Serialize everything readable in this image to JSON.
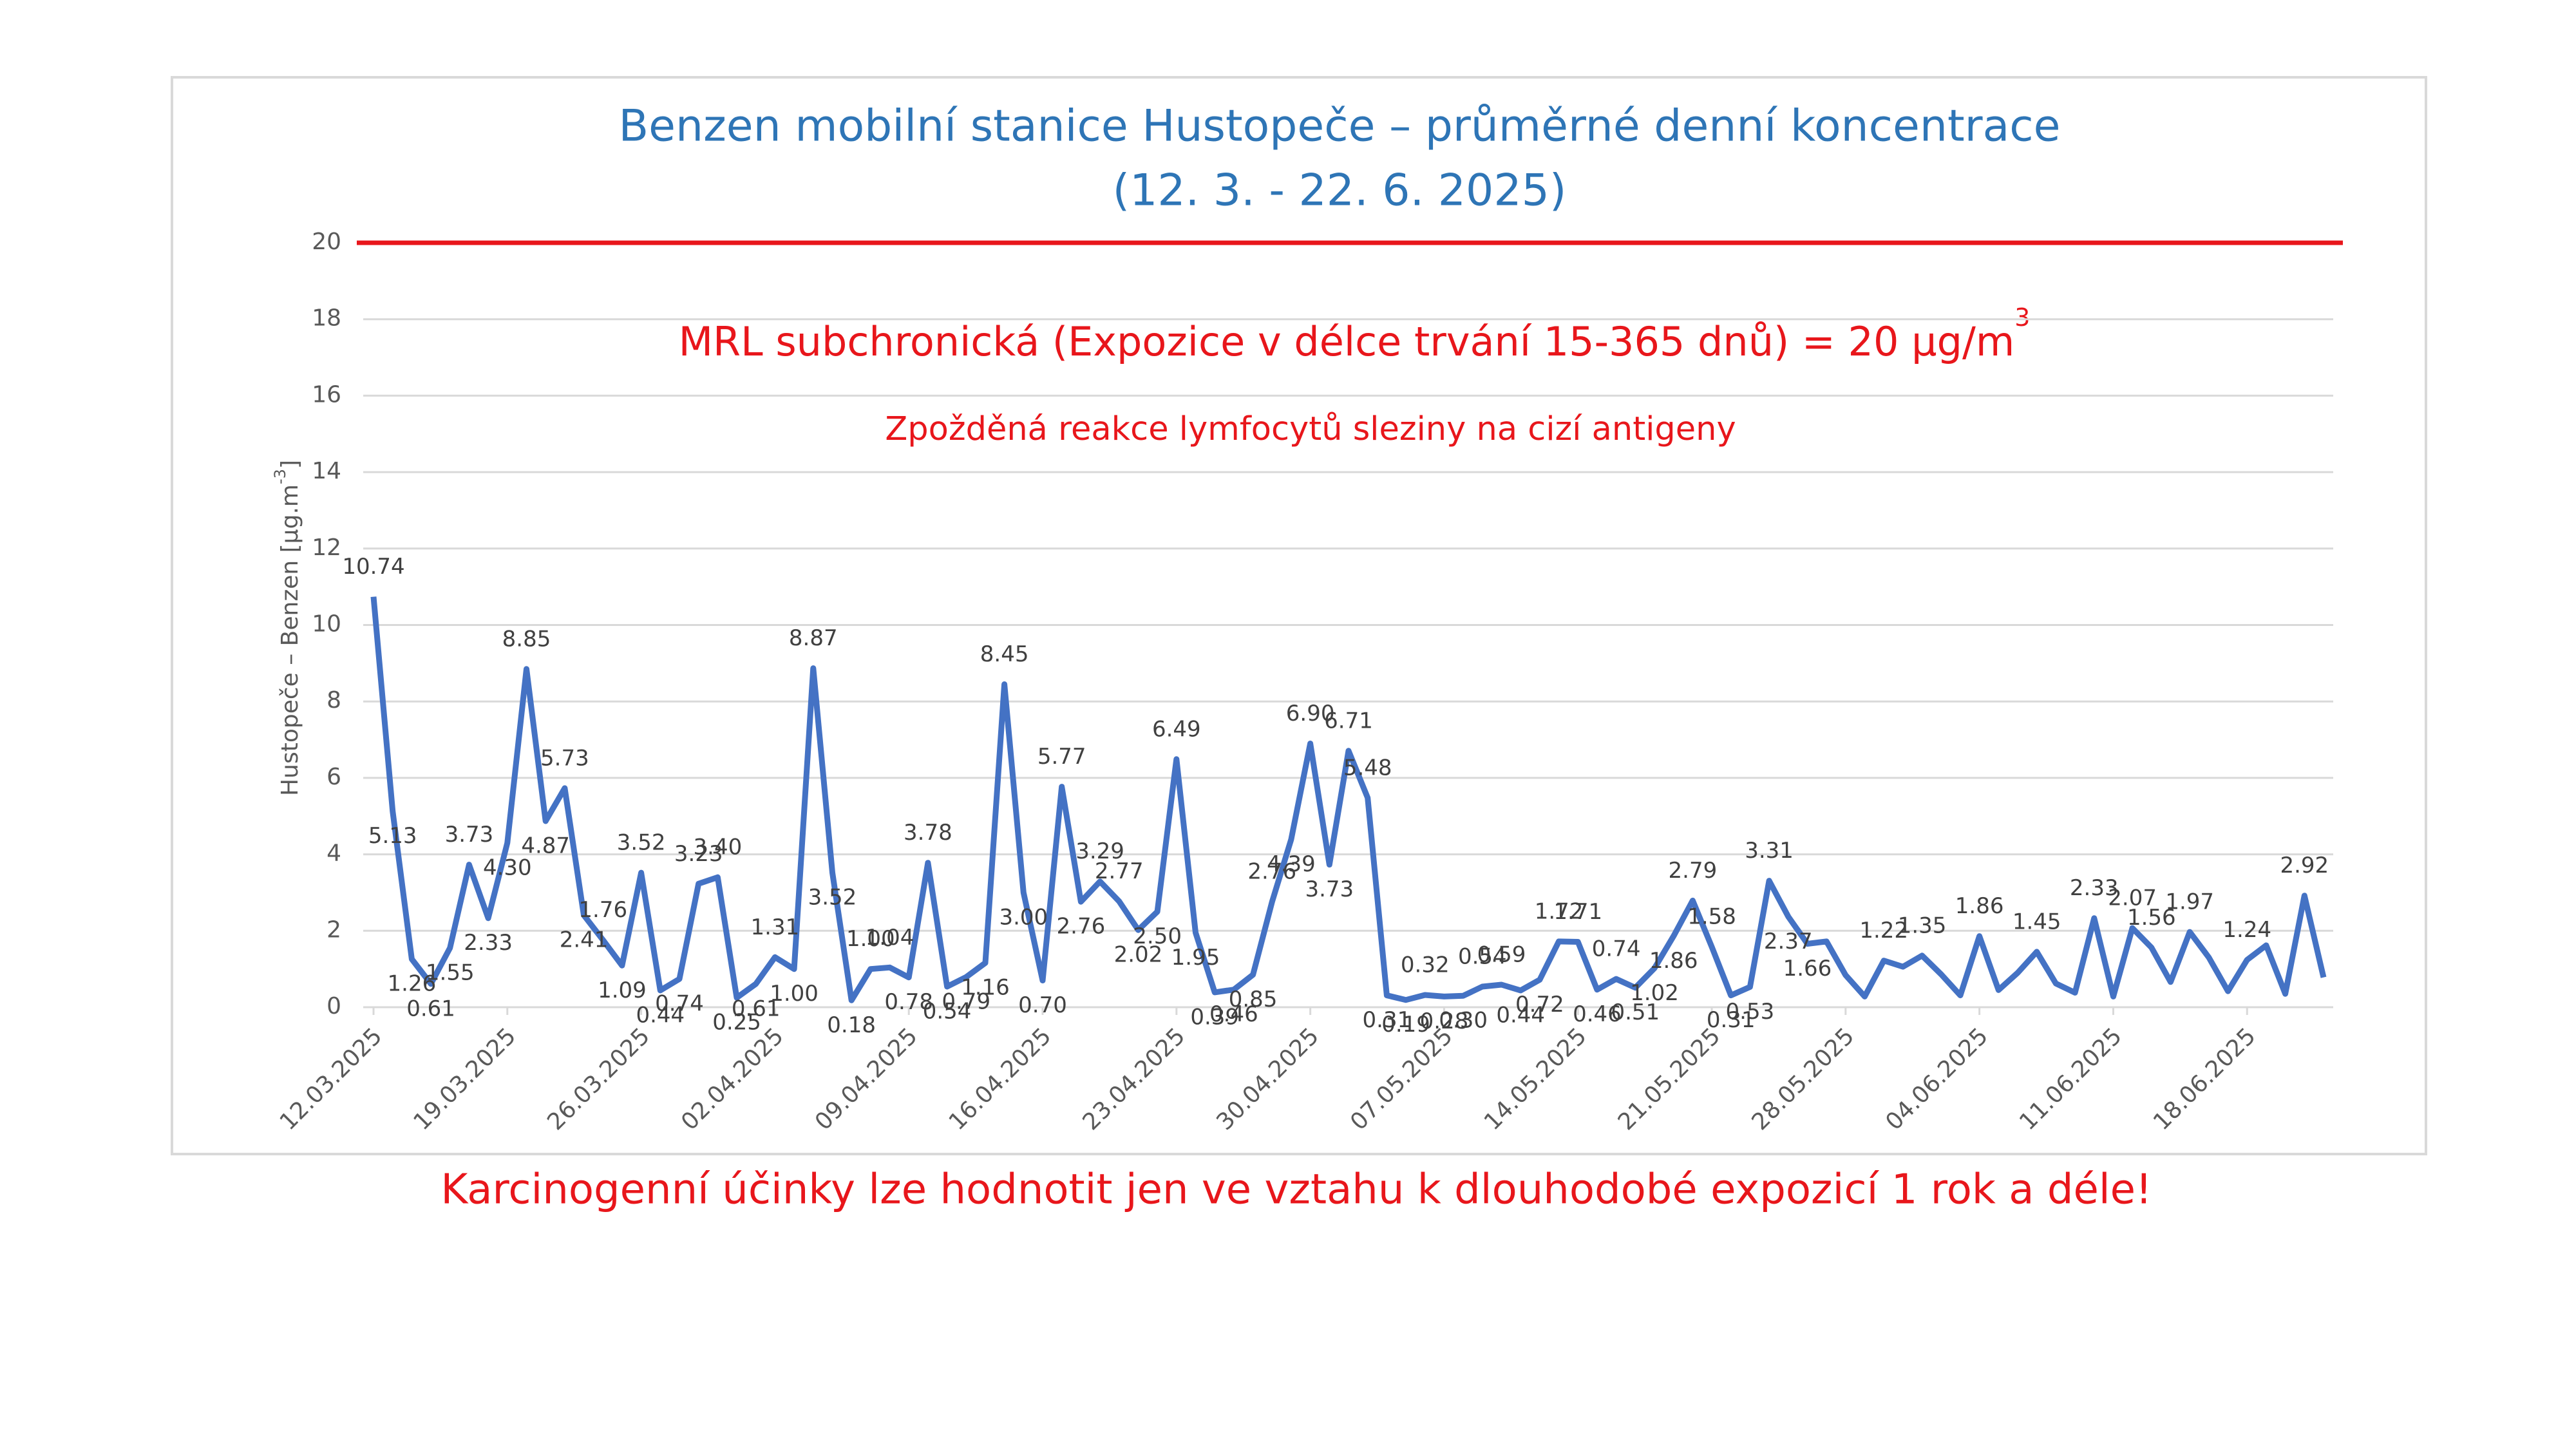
{
  "chart_data": {
    "type": "line",
    "title": [
      "Benzen mobilní stanice Hustopeče – průměrné denní koncentrace",
      "(12. 3. - 22. 6. 2025)"
    ],
    "y_label": [
      "Hustopeče – Benzen  [µg.m",
      "-3",
      "]"
    ],
    "annotations": {
      "mrl": [
        "MRL subchronická (Expozice v délce trvání 15-365 dnů) = 20 µg/m",
        "3"
      ],
      "effect": "Zpožděná reakce lymfocytů sleziny na cizí antigeny",
      "footer": "Karcinogenní účinky lze hodnotit jen ve vztahu k dlouhodobé expozicí 1 rok a déle!"
    },
    "reference_line": {
      "value": 20,
      "color": "#e8161b"
    },
    "color": "#4472c4",
    "ylim": [
      0,
      20
    ],
    "yticks": [
      0,
      2,
      4,
      6,
      8,
      10,
      12,
      14,
      16,
      18,
      20
    ],
    "grid": true,
    "categories": [
      "12.03.2025",
      null,
      null,
      null,
      null,
      null,
      null,
      "19.03.2025",
      null,
      null,
      null,
      null,
      null,
      null,
      "26.03.2025",
      null,
      null,
      null,
      null,
      null,
      null,
      "02.04.2025",
      null,
      null,
      null,
      null,
      null,
      null,
      "09.04.2025",
      null,
      null,
      null,
      null,
      null,
      null,
      "16.04.2025",
      null,
      null,
      null,
      null,
      null,
      null,
      "23.04.2025",
      null,
      null,
      null,
      null,
      null,
      null,
      "30.04.2025",
      null,
      null,
      null,
      null,
      null,
      null,
      "07.05.2025",
      null,
      null,
      null,
      null,
      null,
      null,
      "14.05.2025",
      null,
      null,
      null,
      null,
      null,
      null,
      "21.05.2025",
      null,
      null,
      null,
      null,
      null,
      null,
      "28.05.2025",
      null,
      null,
      null,
      null,
      null,
      null,
      "04.06.2025",
      null,
      null,
      null,
      null,
      null,
      null,
      "11.06.2025",
      null,
      null,
      null,
      null,
      null,
      null,
      "18.06.2025",
      null,
      null,
      null,
      null
    ],
    "values": [
      10.74,
      5.13,
      1.26,
      0.61,
      1.55,
      3.73,
      2.33,
      4.3,
      8.85,
      4.87,
      5.73,
      2.41,
      1.76,
      1.09,
      3.52,
      0.44,
      0.74,
      3.23,
      3.4,
      0.25,
      0.61,
      1.31,
      1.0,
      8.87,
      3.52,
      0.18,
      1.0,
      1.04,
      0.78,
      3.78,
      0.54,
      0.79,
      1.16,
      8.45,
      3.0,
      0.7,
      5.77,
      2.76,
      3.29,
      2.77,
      2.02,
      2.5,
      6.49,
      1.95,
      0.39,
      0.46,
      0.85,
      2.76,
      4.39,
      6.9,
      3.73,
      6.71,
      5.48,
      0.31,
      0.19,
      0.32,
      0.28,
      0.3,
      0.54,
      0.59,
      0.44,
      0.72,
      1.72,
      1.71,
      0.46,
      0.74,
      0.51,
      1.02,
      1.86,
      2.79,
      1.58,
      0.31,
      0.53,
      3.31,
      2.37,
      1.66,
      1.72,
      0.84,
      0.28,
      1.22,
      1.06,
      1.35,
      0.86,
      0.31,
      1.86,
      0.45,
      0.9,
      1.45,
      0.62,
      0.38,
      2.33,
      0.28,
      2.07,
      1.56,
      0.66,
      1.97,
      1.3,
      0.42,
      1.24,
      1.62,
      0.35,
      2.92,
      0.78
    ],
    "value_labels": [
      "10.74",
      "5.13",
      "1.26",
      "0.61",
      "1.55",
      "3.73",
      "2.33",
      "4.30",
      "8.85",
      "4.87",
      "5.73",
      "2.41",
      "1.76",
      "1.09",
      "3.52",
      "0.44",
      "0.74",
      "3.23",
      "3.40",
      "0.25",
      "0.61",
      "1.31",
      "1.00",
      "8.87",
      "3.52",
      "0.18",
      "1.00",
      "1.04",
      "0.78",
      "3.78",
      "0.54",
      "0.79",
      "1.16",
      "8.45",
      "3.00",
      "0.70",
      "5.77",
      "2.76",
      "3.29",
      "2.77",
      "2.02",
      "2.50",
      "6.49",
      "1.95",
      "0.39",
      "0.46",
      "0.85",
      "2.76",
      "4.39",
      "6.90",
      "3.73",
      "6.71",
      "5.48",
      "0.31",
      "0.19",
      "0.32",
      "0.28",
      "0.30",
      "0.54",
      "0.59",
      "0.44",
      "0.72",
      "1.72",
      "1.71",
      "0.46",
      "0.74",
      "0.51",
      "1.02",
      "1.86",
      "2.79",
      "1.58",
      "0.31",
      "0.53",
      "3.31",
      "2.37",
      "1.66",
      null,
      null,
      null,
      "1.22",
      null,
      "1.35",
      null,
      null,
      "1.86",
      null,
      null,
      "1.45",
      null,
      null,
      "2.33",
      null,
      "2.07",
      "1.56",
      null,
      "1.97",
      null,
      null,
      "1.24",
      null,
      null,
      "2.92",
      null
    ]
  }
}
